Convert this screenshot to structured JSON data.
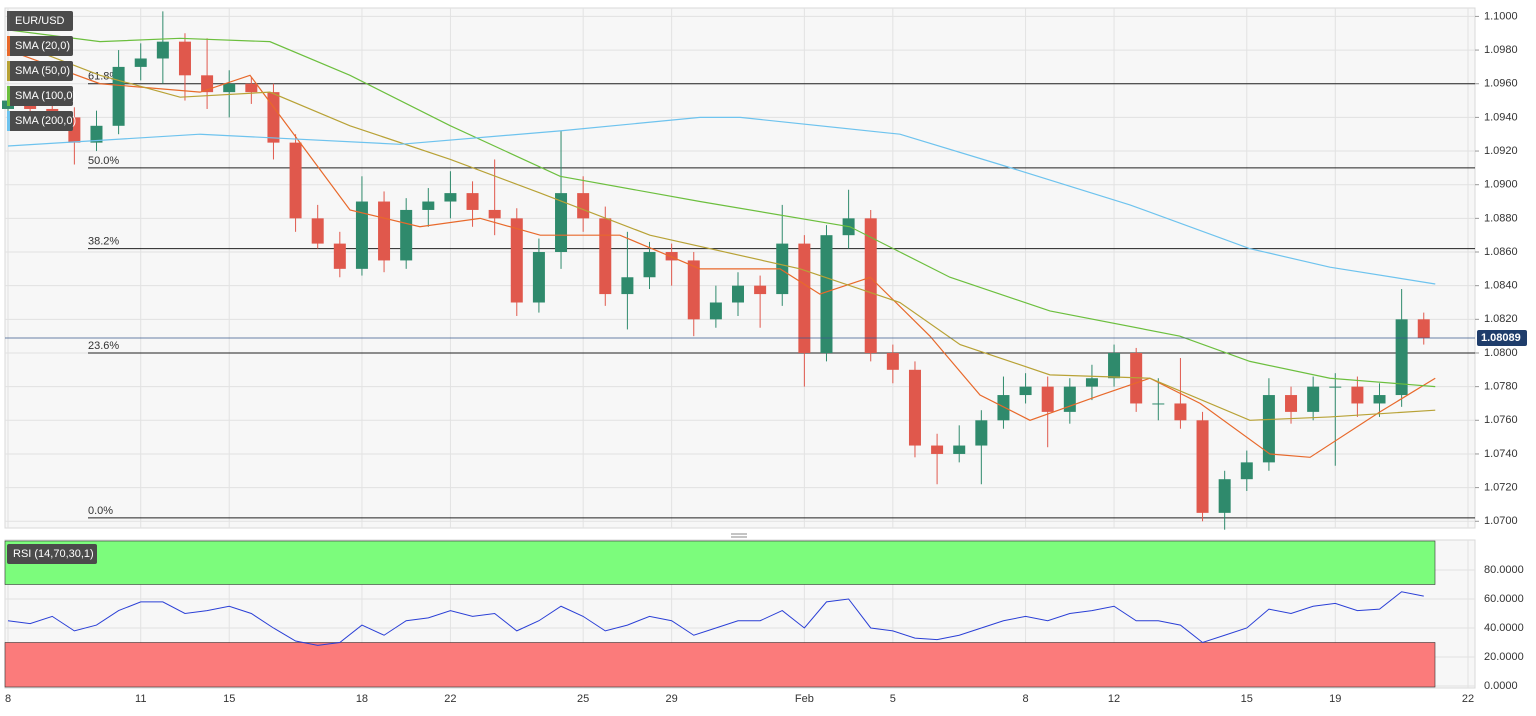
{
  "chart_data": [
    {
      "type": "candlestick",
      "symbol": "EUR/USD",
      "up_color": "#2f8a6c",
      "down_color": "#e0584c",
      "xlim": [
        0,
        33
      ],
      "xticks": [
        {
          "value": 0,
          "label": "8"
        },
        {
          "value": 3,
          "label": "11"
        },
        {
          "value": 5,
          "label": "15"
        },
        {
          "value": 8,
          "label": "18"
        },
        {
          "value": 10,
          "label": "22"
        },
        {
          "value": 13,
          "label": "25"
        },
        {
          "value": 15,
          "label": "29"
        },
        {
          "value": 18,
          "label": "Feb"
        },
        {
          "value": 20,
          "label": "5"
        },
        {
          "value": 23,
          "label": "8"
        },
        {
          "value": 25,
          "label": "12"
        },
        {
          "value": 28,
          "label": "15"
        },
        {
          "value": 30,
          "label": "19"
        },
        {
          "value": 33,
          "label": "22"
        }
      ],
      "ylim": [
        1.0696,
        1.1005
      ],
      "yticks": [
        {
          "value": 1.07,
          "label": "1.0700"
        },
        {
          "value": 1.072,
          "label": "1.0720"
        },
        {
          "value": 1.074,
          "label": "1.0740"
        },
        {
          "value": 1.076,
          "label": "1.0760"
        },
        {
          "value": 1.078,
          "label": "1.0780"
        },
        {
          "value": 1.08,
          "label": "1.0800"
        },
        {
          "value": 1.082,
          "label": "1.0820"
        },
        {
          "value": 1.084,
          "label": "1.0840"
        },
        {
          "value": 1.086,
          "label": "1.0860"
        },
        {
          "value": 1.088,
          "label": "1.0880"
        },
        {
          "value": 1.09,
          "label": "1.0900"
        },
        {
          "value": 1.092,
          "label": "1.0920"
        },
        {
          "value": 1.094,
          "label": "1.0940"
        },
        {
          "value": 1.096,
          "label": "1.0960"
        },
        {
          "value": 1.098,
          "label": "1.0980"
        },
        {
          "value": 1.1,
          "label": "1.1000"
        }
      ],
      "grid": true,
      "x": [
        0,
        0.5,
        1,
        1.5,
        2,
        2.5,
        3,
        3.5,
        4,
        4.5,
        5,
        5.5,
        6,
        6.5,
        7,
        7.5,
        8,
        8.5,
        9,
        9.5,
        10,
        10.5,
        11,
        11.5,
        12,
        12.5,
        13,
        13.5,
        14,
        14.5,
        15,
        15.5,
        16,
        16.5,
        17,
        17.5,
        18,
        18.5,
        19,
        19.5,
        20,
        20.5,
        21,
        21.5,
        22,
        22.5,
        23,
        23.5,
        24,
        24.5,
        25,
        25.5,
        26,
        26.5,
        27,
        27.5,
        28,
        28.5,
        29,
        29.5,
        30,
        30.5,
        31,
        31.5,
        32
      ],
      "open": [
        1.0945,
        1.095,
        1.0945,
        1.094,
        1.0925,
        1.0935,
        1.097,
        1.0975,
        1.0985,
        1.0965,
        1.0955,
        1.096,
        1.0955,
        1.0925,
        1.088,
        1.0865,
        1.085,
        1.089,
        1.0855,
        1.0885,
        1.089,
        1.0895,
        1.0885,
        1.088,
        1.083,
        1.086,
        1.0895,
        1.088,
        1.0835,
        1.0845,
        1.086,
        1.0855,
        1.082,
        1.083,
        1.084,
        1.0835,
        1.0865,
        1.08,
        1.087,
        1.088,
        1.08,
        1.079,
        1.0745,
        1.074,
        1.0745,
        1.076,
        1.0775,
        1.078,
        1.0765,
        1.078,
        1.0785,
        1.08,
        1.077,
        1.077,
        1.076,
        1.0705,
        1.0725,
        1.0735,
        1.0775,
        1.0765,
        1.078,
        1.078,
        1.077,
        1.0775,
        1.082
      ],
      "high": [
        1.0958,
        1.0956,
        1.0952,
        1.0946,
        1.0944,
        1.098,
        1.0984,
        1.1003,
        1.099,
        1.0987,
        1.0968,
        1.0964,
        1.096,
        1.093,
        1.0888,
        1.0872,
        1.0905,
        1.0896,
        1.0892,
        1.0898,
        1.0908,
        1.0902,
        1.0915,
        1.0886,
        1.0868,
        1.0932,
        1.0905,
        1.0887,
        1.0872,
        1.0866,
        1.0865,
        1.086,
        1.084,
        1.0848,
        1.0846,
        1.0888,
        1.087,
        1.0876,
        1.0897,
        1.0885,
        1.0805,
        1.0795,
        1.0752,
        1.0757,
        1.0766,
        1.0786,
        1.0788,
        1.0786,
        1.0785,
        1.0793,
        1.0805,
        1.0803,
        1.0785,
        1.0797,
        1.0765,
        1.073,
        1.0742,
        1.0785,
        1.078,
        1.0786,
        1.0788,
        1.0786,
        1.0782,
        1.0838,
        1.0824
      ],
      "low": [
        1.0938,
        1.094,
        1.0934,
        1.0912,
        1.092,
        1.093,
        1.0962,
        1.096,
        1.095,
        1.0945,
        1.094,
        1.0948,
        1.0915,
        1.0872,
        1.0862,
        1.0845,
        1.0846,
        1.0848,
        1.085,
        1.0875,
        1.088,
        1.0875,
        1.087,
        1.0822,
        1.0824,
        1.085,
        1.0872,
        1.0828,
        1.0814,
        1.0838,
        1.084,
        1.081,
        1.0815,
        1.0822,
        1.0815,
        1.0828,
        1.078,
        1.0795,
        1.0862,
        1.0795,
        1.0782,
        1.0738,
        1.0722,
        1.0735,
        1.0722,
        1.0755,
        1.077,
        1.0744,
        1.0758,
        1.0772,
        1.078,
        1.0765,
        1.076,
        1.0755,
        1.07,
        1.0695,
        1.0718,
        1.073,
        1.0758,
        1.076,
        1.0733,
        1.0762,
        1.0762,
        1.0768,
        1.0805
      ],
      "close": [
        1.095,
        1.0945,
        1.094,
        1.0925,
        1.0935,
        1.097,
        1.0975,
        1.0985,
        1.0965,
        1.0955,
        1.096,
        1.0955,
        1.0925,
        1.088,
        1.0865,
        1.085,
        1.089,
        1.0855,
        1.0885,
        1.089,
        1.0895,
        1.0885,
        1.088,
        1.083,
        1.086,
        1.0895,
        1.088,
        1.0835,
        1.0845,
        1.086,
        1.0855,
        1.082,
        1.083,
        1.084,
        1.0835,
        1.0865,
        1.08,
        1.087,
        1.088,
        1.08,
        1.079,
        1.0745,
        1.074,
        1.0745,
        1.076,
        1.0775,
        1.078,
        1.0765,
        1.078,
        1.0785,
        1.08,
        1.077,
        1.077,
        1.076,
        1.0705,
        1.0725,
        1.0735,
        1.0775,
        1.0765,
        1.078,
        1.078,
        1.077,
        1.0775,
        1.082,
        1.08089
      ],
      "last_price": {
        "value": 1.08089,
        "label": "1.08089"
      },
      "series": [
        {
          "name": "SMA (20,0)",
          "color": "#e8692b",
          "x": [
            0,
            2.08,
            4.34,
            5.47,
            6.6,
            7.73,
            9.31,
            10.67,
            12.03,
            13.83,
            15.64,
            17.45,
            18.35,
            19.49,
            20.84,
            21.97,
            23.1,
            24.7,
            25.81,
            26.95,
            28.52,
            29.43,
            31.01,
            32.26
          ],
          "values": [
            1.098,
            1.096,
            1.0955,
            1.0965,
            1.0925,
            1.0885,
            1.0875,
            1.088,
            1.087,
            1.087,
            1.085,
            1.085,
            1.0835,
            1.0845,
            1.081,
            1.0775,
            1.076,
            1.0775,
            1.0785,
            1.077,
            1.074,
            1.0738,
            1.0765,
            1.0785
          ]
        },
        {
          "name": "SMA (50,0)",
          "color": "#b8a236",
          "x": [
            0,
            2.08,
            3.89,
            5.92,
            7.73,
            10.0,
            12.03,
            14.51,
            17.9,
            20.16,
            21.52,
            23.55,
            25.81,
            28.07,
            29.88,
            32.26
          ],
          "values": [
            1.0986,
            1.0965,
            1.0952,
            1.0955,
            1.0935,
            1.0915,
            1.0895,
            1.087,
            1.085,
            1.083,
            1.0805,
            1.0787,
            1.0785,
            1.076,
            1.0762,
            1.0766
          ]
        },
        {
          "name": "SMA (100,0)",
          "color": "#6cbf3e",
          "x": [
            0,
            2.08,
            3.89,
            5.92,
            7.73,
            10.0,
            12.48,
            15.64,
            19.03,
            21.29,
            23.55,
            26.49,
            28.07,
            29.88,
            32.26
          ],
          "values": [
            1.0992,
            1.0985,
            1.0987,
            1.0985,
            1.0965,
            1.0935,
            1.0905,
            1.089,
            1.0875,
            1.0845,
            1.0825,
            1.081,
            1.0795,
            1.0785,
            1.078
          ]
        },
        {
          "name": "SMA (200,0)",
          "color": "#6ec3ee",
          "x": [
            0,
            4.34,
            8.86,
            12.48,
            15.64,
            16.55,
            20.16,
            22.42,
            25.36,
            28.07,
            29.88,
            32.26
          ],
          "values": [
            1.0923,
            1.093,
            1.0924,
            1.0932,
            1.094,
            1.094,
            1.093,
            1.0912,
            1.0888,
            1.0862,
            1.0851,
            1.0841
          ]
        }
      ],
      "annotations": [
        {
          "label": "61.8%",
          "value": 1.096
        },
        {
          "label": "50.0%",
          "value": 1.091
        },
        {
          "label": "38.2%",
          "value": 1.0862
        },
        {
          "label": "23.6%",
          "value": 1.08
        },
        {
          "label": "0.0%",
          "value": 1.0702
        }
      ]
    },
    {
      "type": "line",
      "name": "RSI (14,70,30,1)",
      "color": "#2a3fd6",
      "ylim": [
        -1.4,
        100.7
      ],
      "yticks": [
        {
          "value": 0,
          "label": "0.0000"
        },
        {
          "value": 20,
          "label": "20.0000"
        },
        {
          "value": 40,
          "label": "40.0000"
        },
        {
          "value": 60,
          "label": "60.0000"
        },
        {
          "value": 80,
          "label": "80.0000"
        }
      ],
      "overbought": 70,
      "overbought_color": "#7cfc7c",
      "oversold": 30,
      "oversold_color": "#fb7b7b",
      "x": [
        0,
        0.5,
        1,
        1.5,
        2,
        2.5,
        3,
        3.5,
        4,
        4.5,
        5,
        5.5,
        6,
        6.5,
        7,
        7.5,
        8,
        8.5,
        9,
        9.5,
        10,
        10.5,
        11,
        11.5,
        12,
        12.5,
        13,
        13.5,
        14,
        14.5,
        15,
        15.5,
        16,
        16.5,
        17,
        17.5,
        18,
        18.5,
        19,
        19.5,
        20,
        20.5,
        21,
        21.5,
        22,
        22.5,
        23,
        23.5,
        24,
        24.5,
        25,
        25.5,
        26,
        26.5,
        27,
        27.5,
        28,
        28.5,
        29,
        29.5,
        30,
        30.5,
        31,
        31.5,
        32
      ],
      "values": [
        45,
        43,
        48,
        38,
        42,
        52,
        58,
        58,
        50,
        52,
        55,
        50,
        40,
        31,
        28,
        30,
        42,
        35,
        45,
        47,
        52,
        48,
        50,
        38,
        45,
        55,
        48,
        38,
        42,
        48,
        45,
        35,
        40,
        45,
        45,
        52,
        40,
        58,
        60,
        40,
        38,
        33,
        32,
        35,
        40,
        45,
        48,
        45,
        50,
        52,
        55,
        45,
        45,
        42,
        30,
        35,
        40,
        53,
        50,
        55,
        57,
        52,
        53,
        65,
        62
      ]
    }
  ]
}
